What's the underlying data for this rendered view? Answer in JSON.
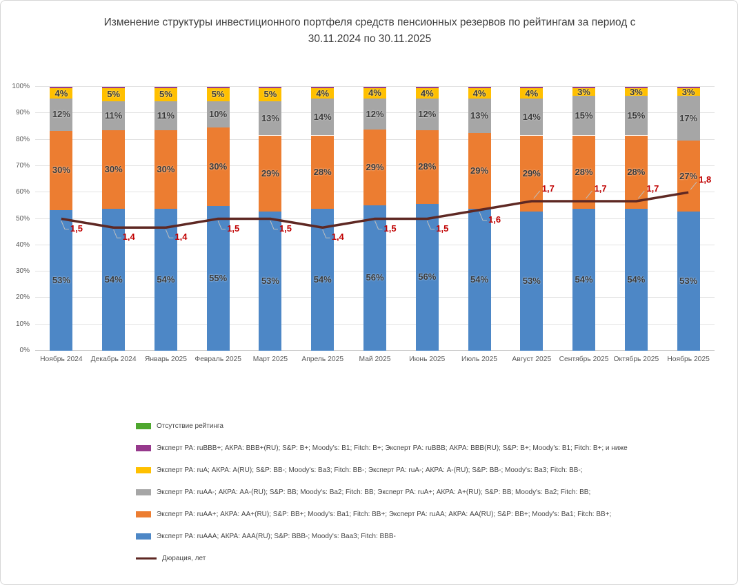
{
  "chart_data": {
    "type": "bar",
    "subtype": "stacked-percent-with-line",
    "title": "Изменение структуры инвестиционного портфеля средств пенсионных резервов по рейтингам за период с 30.11.2024 по 30.11.2025",
    "xlabel": "",
    "ylabel": "",
    "ylim": [
      0,
      100
    ],
    "grid": true,
    "legend_position": "bottom-left",
    "yticks": [
      "0%",
      "10%",
      "20%",
      "30%",
      "40%",
      "50%",
      "60%",
      "70%",
      "80%",
      "90%",
      "100%"
    ],
    "categories": [
      "Ноябрь 2024",
      "Декабрь 2024",
      "Январь 2025",
      "Февраль 2025",
      "Март 2025",
      "Апрель 2025",
      "Май 2025",
      "Июнь 2025",
      "Июль 2025",
      "Август 2025",
      "Сентябрь 2025",
      "Октябрь 2025",
      "Ноябрь 2025"
    ],
    "series": [
      {
        "name": "Эксперт РА: ruAAA; АКРА: AAA(RU); S&P: BBB-; Moody's: Baa3; Fitch: BBB-",
        "color": "blue",
        "values": [
          53,
          54,
          54,
          55,
          53,
          54,
          56,
          56,
          54,
          53,
          54,
          54,
          53
        ],
        "labels": [
          "53%",
          "54%",
          "54%",
          "55%",
          "53%",
          "54%",
          "56%",
          "56%",
          "54%",
          "53%",
          "54%",
          "54%",
          "53%"
        ]
      },
      {
        "name": "Эксперт РА: ruAA+; АКРА: AA+(RU); S&P: BB+; Moody's: Ba1; Fitch: BB+; Эксперт РА: ruAA; АКРА: AA(RU); S&P: BB+; Moody's: Ba1; Fitch: BB+;",
        "color": "orange",
        "values": [
          30,
          30,
          30,
          30,
          29,
          28,
          29,
          28,
          29,
          29,
          28,
          28,
          27
        ],
        "labels": [
          "30%",
          "30%",
          "30%",
          "30%",
          "29%",
          "28%",
          "29%",
          "28%",
          "29%",
          "29%",
          "28%",
          "28%",
          "27%"
        ]
      },
      {
        "name": "Эксперт РА: ruAA-; АКРА: AA-(RU); S&P: BB; Moody's: Ba2; Fitch: BB; Эксперт РА: ruA+; АКРА: A+(RU); S&P: BB; Moody's: Ba2; Fitch: BB;",
        "color": "gray",
        "values": [
          12,
          11,
          11,
          10,
          13,
          14,
          12,
          12,
          13,
          14,
          15,
          15,
          17
        ],
        "labels": [
          "12%",
          "11%",
          "11%",
          "10%",
          "13%",
          "14%",
          "12%",
          "12%",
          "13%",
          "14%",
          "15%",
          "15%",
          "17%"
        ]
      },
      {
        "name": "Эксперт РА: ruA; АКРА: A(RU); S&P: BB-; Moody's: Ba3; Fitch: BB-; Эксперт РА: ruA-; АКРА: A-(RU); S&P: BB-; Moody's: Ba3; Fitch: BB-;",
        "color": "yellow",
        "values": [
          4,
          5,
          5,
          5,
          5,
          4,
          4,
          4,
          4,
          4,
          3,
          3,
          3
        ],
        "labels": [
          "4%",
          "5%",
          "5%",
          "5%",
          "5%",
          "4%",
          "4%",
          "4%",
          "4%",
          "4%",
          "3%",
          "3%",
          "3%"
        ]
      },
      {
        "name": "Эксперт РА: ruBBB+; АКРА: BBB+(RU); S&P: B+; Moody's: B1; Fitch: B+; Эксперт РА: ruBBB; АКРА: BBB(RU); S&P: B+; Moody's: B1; Fitch: B+; и ниже",
        "color": "purple",
        "values": [
          0.5,
          0.5,
          0.5,
          0.5,
          0.5,
          0.5,
          0.5,
          0.5,
          0.5,
          0.5,
          0.5,
          0.5,
          0.5
        ],
        "labels": [
          "",
          "",
          "",
          "",
          "",
          "",
          "",
          "",
          "",
          "",
          "",
          "",
          ""
        ]
      },
      {
        "name": "Отсутствие рейтинга",
        "color": "green",
        "values": [
          0,
          0,
          0,
          0,
          0,
          0,
          0,
          0,
          0,
          0,
          0,
          0,
          0
        ],
        "labels": [
          "",
          "",
          "",
          "",
          "",
          "",
          "",
          "",
          "",
          "",
          "",
          "",
          ""
        ]
      }
    ],
    "line": {
      "name": "Дюрация, лет",
      "values": [
        1.5,
        1.4,
        1.4,
        1.5,
        1.5,
        1.4,
        1.5,
        1.5,
        1.6,
        1.7,
        1.7,
        1.7,
        1.8
      ],
      "labels": [
        "1,5",
        "1,4",
        "1,4",
        "1,5",
        "1,5",
        "1,4",
        "1,5",
        "1,5",
        "1,6",
        "1,7",
        "1,7",
        "1,7",
        "1,8"
      ],
      "secondary_axis_max": 3,
      "label_sides": [
        "below",
        "below",
        "below",
        "below",
        "below",
        "below",
        "below",
        "below",
        "below",
        "above",
        "above",
        "above",
        "above"
      ]
    }
  },
  "legend": {
    "entries": [
      {
        "swatch": "box",
        "color": "green",
        "label": "Отсутствие рейтинга"
      },
      {
        "swatch": "box",
        "color": "purple",
        "label": "Эксперт РА: ruBBB+; АКРА: BBB+(RU); S&P: B+; Moody's: B1; Fitch: B+; Эксперт РА: ruBBB; АКРА: BBB(RU); S&P: B+; Moody's: B1; Fitch: B+; и ниже"
      },
      {
        "swatch": "box",
        "color": "yellow",
        "label": "Эксперт РА: ruA; АКРА: A(RU); S&P: BB-; Moody's: Ba3; Fitch: BB-; Эксперт РА: ruA-; АКРА: A-(RU); S&P: BB-; Moody's: Ba3; Fitch: BB-;"
      },
      {
        "swatch": "box",
        "color": "gray",
        "label": "Эксперт РА: ruAA-; АКРА: AA-(RU); S&P: BB; Moody's: Ba2; Fitch: BB; Эксперт РА: ruA+; АКРА: A+(RU); S&P: BB; Moody's: Ba2; Fitch: BB;"
      },
      {
        "swatch": "box",
        "color": "orange",
        "label": "Эксперт РА: ruAA+; АКРА: AA+(RU); S&P: BB+; Moody's: Ba1; Fitch: BB+; Эксперт РА: ruAA; АКРА: AA(RU); S&P: BB+; Moody's: Ba1; Fitch: BB+;"
      },
      {
        "swatch": "box",
        "color": "blue",
        "label": "Эксперт РА: ruAAA; АКРА: AAA(RU); S&P: BBB-; Moody's: Baa3; Fitch: BBB-"
      },
      {
        "swatch": "line",
        "color": "line",
        "label": "Дюрация, лет"
      }
    ]
  },
  "colors": {
    "blue": "#4D87C6",
    "orange": "#EC7D31",
    "gray": "#A6A6A6",
    "yellow": "#FFC000",
    "purple": "#96398C",
    "green": "#4EA72E",
    "line": "#5E2823",
    "line_label": "#C00000",
    "leader": "#BFBFBF"
  }
}
